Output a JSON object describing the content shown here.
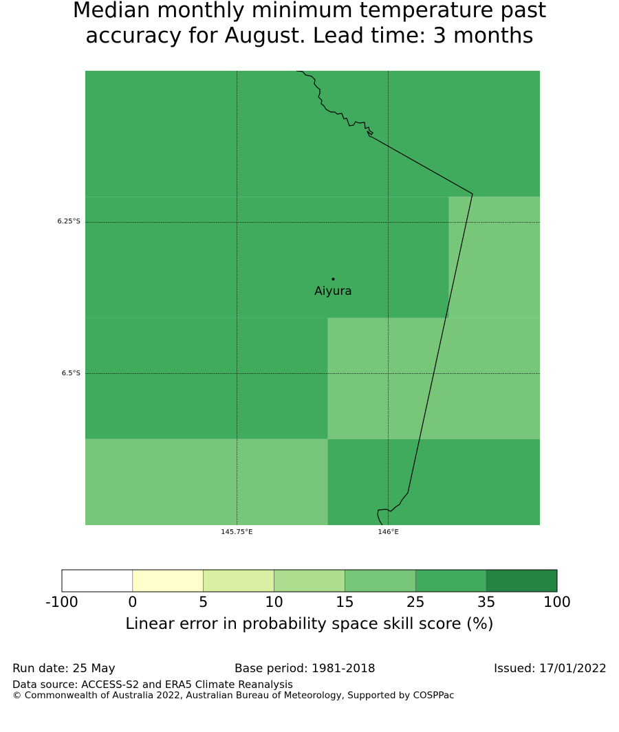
{
  "title": {
    "line1": "Median monthly minimum temperature past",
    "line2": "accuracy for August. Lead time: 3 months"
  },
  "map": {
    "lat_range": [
      -6.75,
      -6.0
    ],
    "lon_range": [
      145.5,
      146.25
    ],
    "lat_gridlines": [
      {
        "value": -6.25,
        "label": "6.25°S"
      },
      {
        "value": -6.5,
        "label": "6.5°S"
      }
    ],
    "lon_gridlines": [
      {
        "value": 145.75,
        "label": "145.75°E"
      },
      {
        "value": 146.0,
        "label": "146°E"
      }
    ],
    "station": {
      "name": "Aiyura",
      "lat": -6.344,
      "lon": 145.909
    }
  },
  "chart_data": {
    "type": "heatmap",
    "colorbar": {
      "title": "Linear error in probability space skill score (%)",
      "boundaries": [
        "-100",
        "0",
        "5",
        "10",
        "15",
        "25",
        "35",
        "100"
      ],
      "colors": [
        "#ffffff",
        "#ffffcc",
        "#d9f0a3",
        "#addd8e",
        "#78c679",
        "#41ab5d",
        "#238443"
      ]
    },
    "cells": [
      {
        "lat": [
          -6.208,
          -6.0
        ],
        "lon": [
          145.5,
          146.25
        ],
        "bin": "25-35"
      },
      {
        "lat": [
          -6.408,
          -6.208
        ],
        "lon": [
          145.5,
          146.1
        ],
        "bin": "25-35"
      },
      {
        "lat": [
          -6.408,
          -6.208
        ],
        "lon": [
          146.1,
          146.25
        ],
        "bin": "15-25"
      },
      {
        "lat": [
          -6.608,
          -6.408
        ],
        "lon": [
          145.5,
          145.9
        ],
        "bin": "25-35"
      },
      {
        "lat": [
          -6.608,
          -6.408
        ],
        "lon": [
          145.9,
          146.25
        ],
        "bin": "15-25"
      },
      {
        "lat": [
          -6.75,
          -6.608
        ],
        "lon": [
          145.5,
          145.9
        ],
        "bin": "15-25"
      },
      {
        "lat": [
          -6.75,
          -6.608
        ],
        "lon": [
          145.9,
          146.25
        ],
        "bin": "25-35"
      }
    ]
  },
  "footer": {
    "run_date": "Run date: 25 May",
    "base_period": "Base period: 1981-2018",
    "issued": "Issued: 17/01/2022",
    "data_source": "Data source: ACCESS-S2 and ERA5 Climate Reanalysis",
    "copyright": "© Commonwealth of Australia 2022, Australian Bureau of Meteorology, Supported by COSPPac"
  }
}
